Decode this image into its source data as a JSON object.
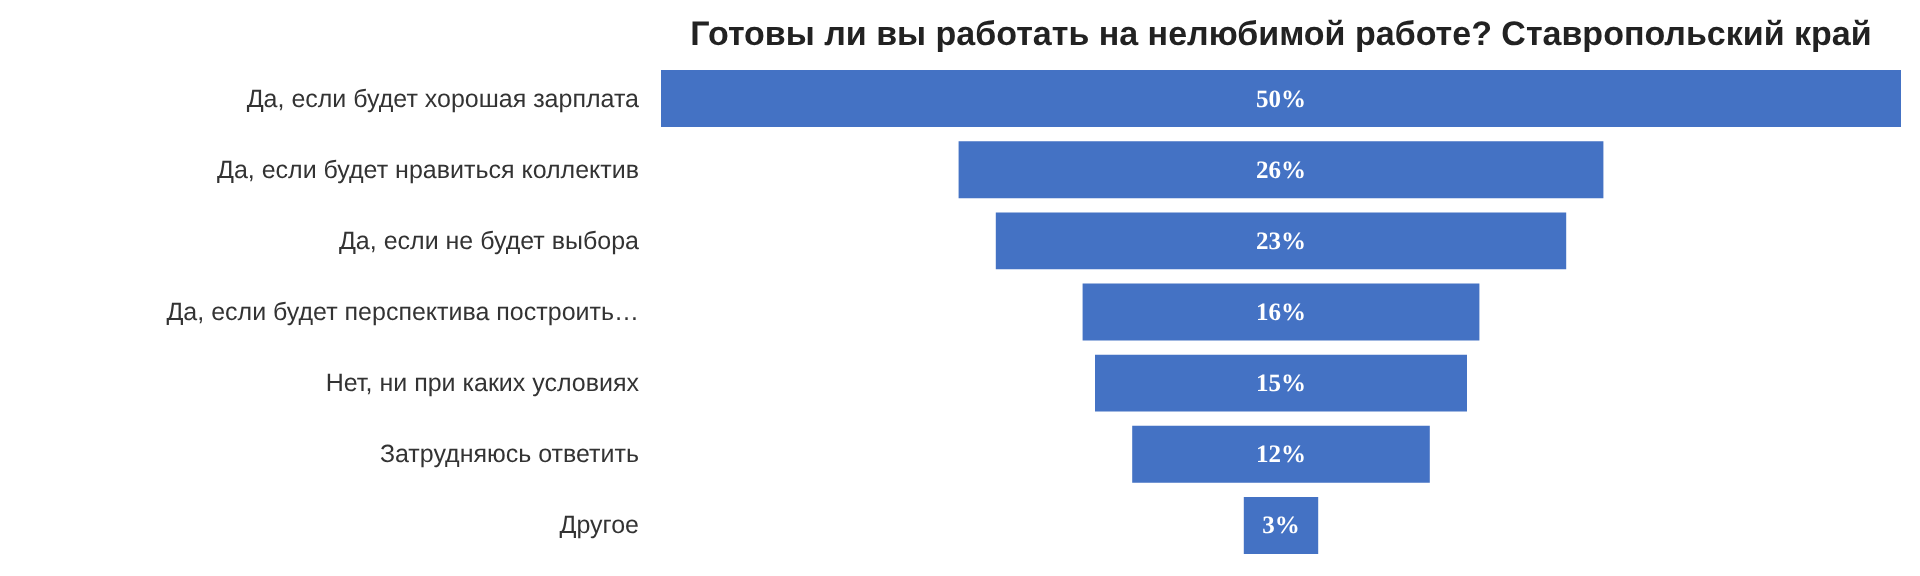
{
  "chart_data": {
    "type": "other",
    "title": "Готовы ли вы работать на нелюбимой работе? Ставропольский край",
    "categories": [
      "Да, если будет хорошая зарплата",
      "Да, если будет нравиться коллектив",
      "Да, если не будет выбора",
      "Да, если будет перспектива построить…",
      "Нет, ни при каких условиях",
      "Затрудняюсь ответить",
      "Другое"
    ],
    "values": [
      50,
      26,
      23,
      16,
      15,
      12,
      3
    ],
    "value_labels": [
      "50%",
      "26%",
      "23%",
      "16%",
      "15%",
      "12%",
      "3%"
    ],
    "color": "#4472c4"
  }
}
